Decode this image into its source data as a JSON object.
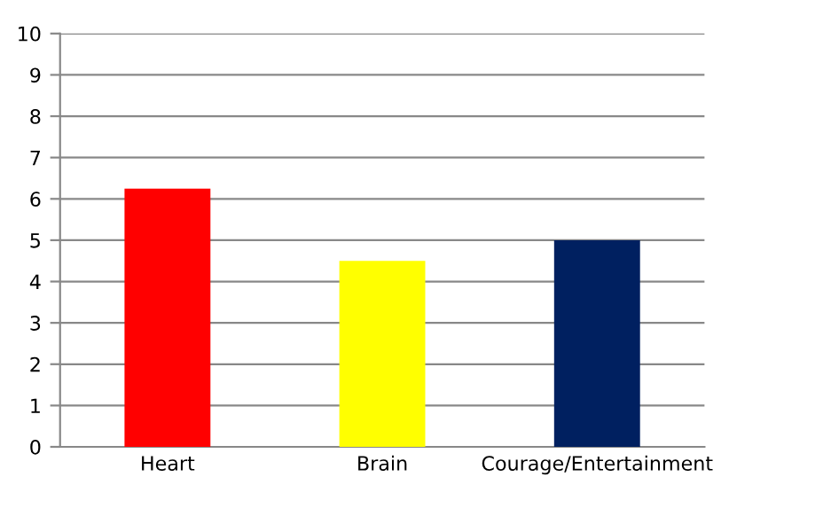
{
  "chart_data": {
    "type": "bar",
    "categories": [
      "Heart",
      "Brain",
      "Courage/Entertainment"
    ],
    "values": [
      6.25,
      4.5,
      5
    ],
    "colors": [
      "#ff0000",
      "#ffff00",
      "#002060"
    ],
    "ylim": [
      0,
      10
    ],
    "yticks": [
      0,
      1,
      2,
      3,
      4,
      5,
      6,
      7,
      8,
      9,
      10
    ],
    "grid": "y",
    "legend": false
  }
}
